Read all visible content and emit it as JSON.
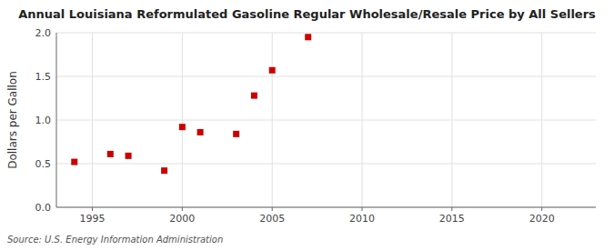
{
  "chart_data": {
    "type": "scatter",
    "title": "Annual Louisiana Reformulated Gasoline Regular Wholesale/Resale Price by All Sellers",
    "y_label": "Dollars per Gallon",
    "annotations": [
      "Source: U.S. Energy Information Administration"
    ],
    "x": [
      1994,
      1996,
      1997,
      1999,
      2000,
      2001,
      2003,
      2004,
      2005,
      2007
    ],
    "values": [
      0.52,
      0.61,
      0.59,
      0.42,
      0.92,
      0.86,
      0.84,
      1.28,
      1.57,
      1.95
    ],
    "color": "#cc0000",
    "marker": "square",
    "xlim": [
      1993,
      2023
    ],
    "ylim": [
      0.0,
      2.0
    ],
    "xticks": [
      1995,
      2000,
      2005,
      2010,
      2015,
      2020
    ],
    "yticks": [
      {
        "value": 0.0,
        "label": "0.0"
      },
      {
        "value": 0.5,
        "label": "0.5"
      },
      {
        "value": 1.0,
        "label": "1.0"
      },
      {
        "value": 1.5,
        "label": "1.5"
      },
      {
        "value": 2.0,
        "label": "2.0"
      }
    ],
    "grid": true
  }
}
